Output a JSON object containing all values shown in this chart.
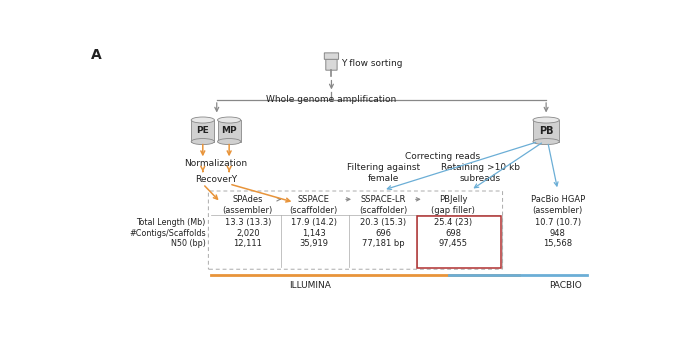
{
  "title_label": "A",
  "flow_sorting_label": "Y flow sorting",
  "wga_label": "Whole genome amplification",
  "pe_label": "PE",
  "mp_label": "MP",
  "pb_label": "PB",
  "norm_label": "Normalization",
  "recovery_label": "RecoverY",
  "correcting_label": "Correcting reads",
  "filtering_label": "Filtering against\nfemale",
  "retaining_label": "Retaining >10 kb\nsubreads",
  "illumina_label": "ILLUMINA",
  "pacbio_label": "PACBIO",
  "tools": [
    "SPAdes\n(assembler)",
    "SSPACE\n(scaffolder)",
    "SSPACE-LR\n(scaffolder)",
    "PBJelly\n(gap filler)",
    "PacBio HGAP\n(assembler)"
  ],
  "row_labels": [
    "Total Length (Mb)",
    "#Contigs/Scaffolds",
    "N50 (bp)"
  ],
  "data_rows": [
    [
      "13.3 (13.3)",
      "17.9 (14.2)",
      "20.3 (15.3)",
      "25.4 (23)",
      "10.7 (10.7)"
    ],
    [
      "2,020",
      "1,143",
      "696",
      "698",
      "948"
    ],
    [
      "12,111",
      "35,919",
      "77,181 bp",
      "97,455",
      "15,568"
    ]
  ],
  "orange_color": "#E8943A",
  "blue_color": "#6BAED6",
  "gray_color": "#888888",
  "light_gray": "#AAAAAA",
  "highlight_box_color": "#B03030",
  "bg_color": "#FFFFFF",
  "text_color": "#222222",
  "cyl_face": "#D0D0D0",
  "cyl_top": "#E8E8E8",
  "cyl_edge": "#888888"
}
